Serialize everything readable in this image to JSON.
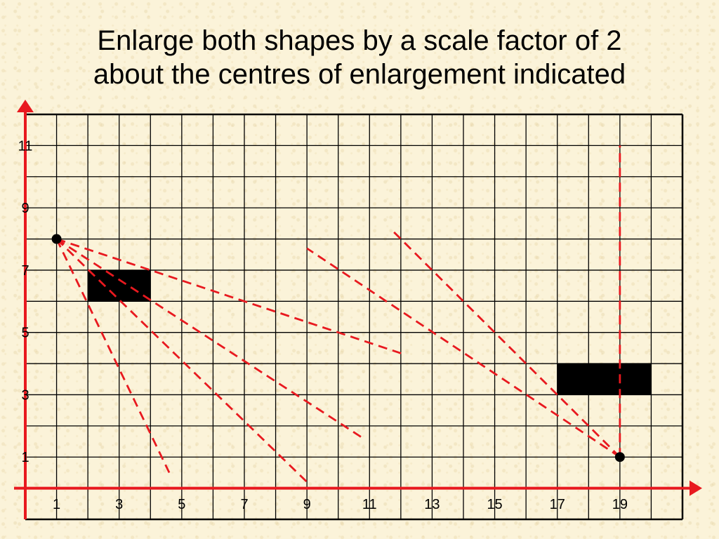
{
  "title": {
    "line1": "Enlarge both shapes by a scale factor of 2",
    "line2": "about the centres of enlargement indicated"
  },
  "colors": {
    "grid": "#000000",
    "axes": "#e8191f",
    "construction_lines": "#e8191f",
    "shapes": "#000000",
    "background": "#fbf3d9"
  },
  "grid": {
    "x_min": 0,
    "x_max": 21,
    "y_min": -1,
    "y_max": 12,
    "x_tick_labels": [
      "1",
      "3",
      "5",
      "7",
      "9",
      "11",
      "13",
      "15",
      "17",
      "19"
    ],
    "y_tick_labels": [
      "11",
      "9",
      "7",
      "5",
      "3",
      "1"
    ]
  },
  "shapes": [
    {
      "name": "rectangle-a",
      "x1": 2,
      "y1": 6,
      "x2": 4,
      "y2": 7
    },
    {
      "name": "rectangle-b",
      "x1": 17,
      "y1": 3,
      "x2": 20,
      "y2": 4
    }
  ],
  "centres": [
    {
      "name": "centre-a",
      "x": 1,
      "y": 8
    },
    {
      "name": "centre-b",
      "x": 19,
      "y": 1
    }
  ],
  "construction_lines": [
    {
      "from": [
        1,
        8
      ],
      "to": [
        4.6,
        0.5
      ]
    },
    {
      "from": [
        1,
        8
      ],
      "to": [
        9,
        0.2
      ]
    },
    {
      "from": [
        1,
        8
      ],
      "to": [
        10.8,
        1.6
      ]
    },
    {
      "from": [
        1,
        8
      ],
      "to": [
        12.1,
        4.3
      ]
    },
    {
      "from": [
        19,
        1
      ],
      "to": [
        9,
        7.7
      ]
    },
    {
      "from": [
        19,
        1
      ],
      "to": [
        11.7,
        8.3
      ]
    },
    {
      "from": [
        19,
        1
      ],
      "to": [
        19,
        11
      ]
    }
  ]
}
